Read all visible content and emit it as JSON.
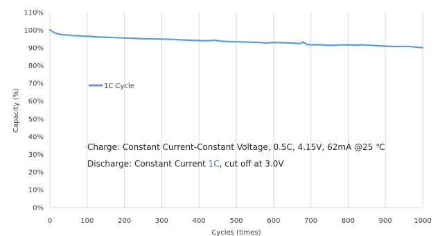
{
  "chart_data": {
    "type": "line",
    "xlabel": "Cycles (times)",
    "ylabel": "Capacity (%)",
    "xlim": [
      0,
      1000
    ],
    "ylim": [
      0,
      110
    ],
    "x_ticks": [
      0,
      100,
      200,
      300,
      400,
      500,
      600,
      700,
      800,
      900,
      1000
    ],
    "y_ticks": [
      0,
      10,
      20,
      30,
      40,
      50,
      60,
      70,
      80,
      90,
      100,
      110
    ],
    "y_tick_suffix": "%",
    "grid": {
      "vertical": true,
      "horizontal": false
    },
    "legend": {
      "position": "center-left",
      "entries": [
        "1C Cycle"
      ]
    },
    "series": [
      {
        "name": "1C Cycle",
        "color": "#5b9bd5",
        "x": [
          0,
          5,
          10,
          20,
          30,
          40,
          50,
          60,
          70,
          80,
          90,
          100,
          120,
          140,
          160,
          180,
          200,
          220,
          240,
          260,
          280,
          300,
          320,
          340,
          360,
          380,
          400,
          420,
          440,
          460,
          480,
          500,
          520,
          540,
          560,
          580,
          600,
          620,
          640,
          660,
          670,
          680,
          690,
          700,
          720,
          740,
          760,
          780,
          800,
          820,
          840,
          860,
          880,
          900,
          920,
          940,
          960,
          980,
          1000
        ],
        "values": [
          100.3,
          99.6,
          98.8,
          98.0,
          97.6,
          97.4,
          97.2,
          97.0,
          96.9,
          96.8,
          96.6,
          96.6,
          96.3,
          96.1,
          96.0,
          95.8,
          95.6,
          95.5,
          95.3,
          95.2,
          95.1,
          95.0,
          94.9,
          94.7,
          94.5,
          94.3,
          94.2,
          94.0,
          94.4,
          93.8,
          93.6,
          93.5,
          93.4,
          93.3,
          93.1,
          92.8,
          93.1,
          93.0,
          92.8,
          92.6,
          92.4,
          93.3,
          92.0,
          91.8,
          91.8,
          91.6,
          91.5,
          91.7,
          91.8,
          91.6,
          91.8,
          91.5,
          91.3,
          91.0,
          90.8,
          90.8,
          90.9,
          90.5,
          90.1
        ]
      }
    ],
    "annotations": [
      {
        "text": "Charge: Constant Current-Constant Voltage, 0.5C, 4.15V, 62mA @25 ℃"
      },
      {
        "parts": [
          "Discharge: Constant Current ",
          "1C",
          ", cut off at 3.0V"
        ]
      }
    ]
  }
}
